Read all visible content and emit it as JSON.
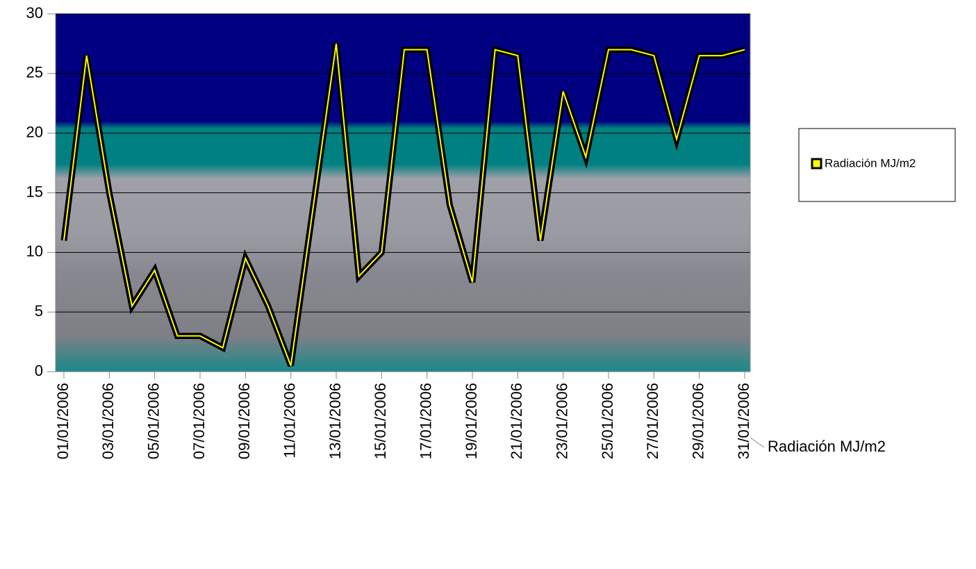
{
  "chart_data": {
    "type": "line",
    "categories": [
      "01/01/2006",
      null,
      "03/01/2006",
      null,
      "05/01/2006",
      null,
      "07/01/2006",
      null,
      "09/01/2006",
      null,
      "11/01/2006",
      null,
      "13/01/2006",
      null,
      "15/01/2006",
      null,
      "17/01/2006",
      null,
      "19/01/2006",
      null,
      "21/01/2006",
      null,
      "23/01/2006",
      null,
      "25/01/2006",
      null,
      "27/01/2006",
      null,
      "29/01/2006",
      null,
      "31/01/2006"
    ],
    "series": [
      {
        "name": "Radiación MJ/m2",
        "color": "#000000",
        "values": [
          11,
          26.5,
          15,
          5.5,
          8.5,
          3,
          3,
          2,
          9.5,
          5.5,
          0.5,
          14,
          27.5,
          8,
          10,
          27,
          27,
          14,
          7.5,
          27,
          26.5,
          11,
          23.5,
          18,
          27,
          27,
          26.5,
          19.5,
          26.5,
          26.5,
          27
        ]
      }
    ],
    "ylim": [
      0,
      30
    ],
    "yticks": [
      0,
      5,
      10,
      15,
      20,
      25,
      30
    ],
    "grid": true,
    "legend": "right"
  }
}
